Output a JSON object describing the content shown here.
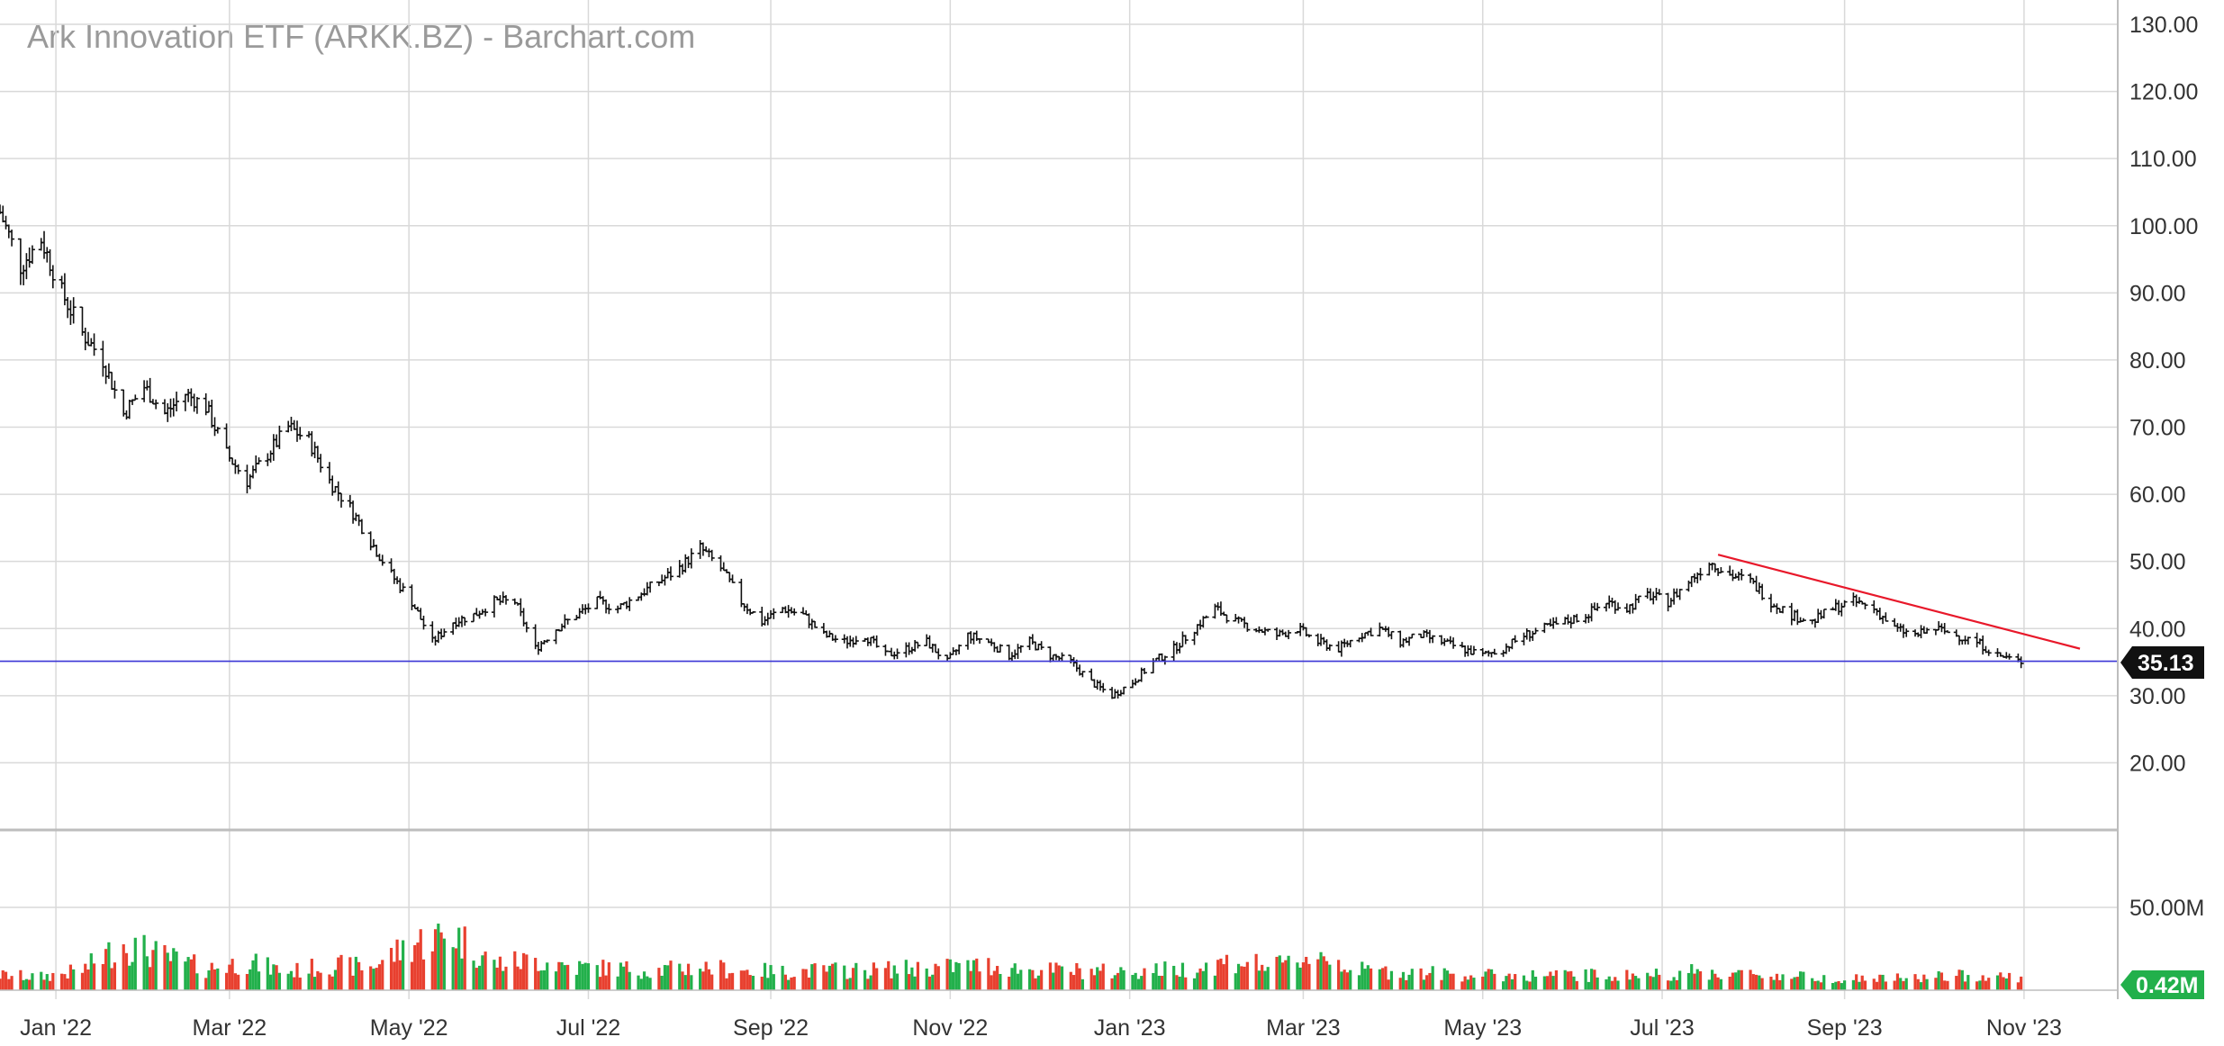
{
  "header": {
    "title": "Ark Innovation ETF (ARKK.BZ) - Barchart.com"
  },
  "colors": {
    "bars": "#111111",
    "up_volume": "#22b04b",
    "down_volume": "#e8402f",
    "neutral_volume": "#3b5bdb",
    "support_line": "#3a35d6",
    "trend_line": "#e8182a",
    "grid": "#d9d9d9",
    "price_badge": "#111111",
    "volume_badge": "#22b04b"
  },
  "chart_data": {
    "type": "ohlc_bar",
    "x_tick_labels": [
      "Jan '22",
      "Mar '22",
      "May '22",
      "Jul '22",
      "Sep '22",
      "Nov '22",
      "Jan '23",
      "Mar '23",
      "May '23",
      "Jul '23",
      "Sep '23",
      "Nov '23"
    ],
    "y_tick_labels": [
      "130.00",
      "120.00",
      "110.00",
      "100.00",
      "90.00",
      "80.00",
      "70.00",
      "60.00",
      "50.00",
      "40.00",
      "30.00",
      "20.00"
    ],
    "price_ylim": [
      10,
      130
    ],
    "price_ticks": [
      130,
      120,
      110,
      100,
      90,
      80,
      70,
      60,
      50,
      40,
      30,
      20
    ],
    "price_series_weekly": [
      [
        "2021-12-13",
        102
      ],
      [
        "2021-12-20",
        94
      ],
      [
        "2021-12-27",
        98
      ],
      [
        "2022-01-03",
        90
      ],
      [
        "2022-01-10",
        84
      ],
      [
        "2022-01-17",
        80
      ],
      [
        "2022-01-24",
        72
      ],
      [
        "2022-01-31",
        76
      ],
      [
        "2022-02-07",
        72
      ],
      [
        "2022-02-14",
        75
      ],
      [
        "2022-02-21",
        73
      ],
      [
        "2022-02-28",
        66
      ],
      [
        "2022-03-07",
        62
      ],
      [
        "2022-03-14",
        66
      ],
      [
        "2022-03-21",
        70
      ],
      [
        "2022-03-28",
        68
      ],
      [
        "2022-04-04",
        62
      ],
      [
        "2022-04-11",
        58
      ],
      [
        "2022-04-18",
        53
      ],
      [
        "2022-04-25",
        48
      ],
      [
        "2022-05-02",
        44
      ],
      [
        "2022-05-09",
        38
      ],
      [
        "2022-05-16",
        41
      ],
      [
        "2022-05-23",
        42
      ],
      [
        "2022-05-30",
        44
      ],
      [
        "2022-06-06",
        44
      ],
      [
        "2022-06-13",
        37
      ],
      [
        "2022-06-20",
        40
      ],
      [
        "2022-06-27",
        42
      ],
      [
        "2022-07-04",
        44
      ],
      [
        "2022-07-11",
        43
      ],
      [
        "2022-07-18",
        45
      ],
      [
        "2022-07-25",
        47
      ],
      [
        "2022-08-01",
        49
      ],
      [
        "2022-08-08",
        52
      ],
      [
        "2022-08-15",
        49
      ],
      [
        "2022-08-22",
        44
      ],
      [
        "2022-08-29",
        41
      ],
      [
        "2022-09-05",
        43
      ],
      [
        "2022-09-12",
        42
      ],
      [
        "2022-09-19",
        39
      ],
      [
        "2022-09-26",
        38
      ],
      [
        "2022-10-03",
        39
      ],
      [
        "2022-10-10",
        36
      ],
      [
        "2022-10-17",
        37
      ],
      [
        "2022-10-24",
        38
      ],
      [
        "2022-10-31",
        35
      ],
      [
        "2022-11-07",
        39
      ],
      [
        "2022-11-14",
        38
      ],
      [
        "2022-11-21",
        36
      ],
      [
        "2022-11-28",
        38
      ],
      [
        "2022-12-05",
        36
      ],
      [
        "2022-12-12",
        35
      ],
      [
        "2022-12-19",
        32
      ],
      [
        "2022-12-26",
        30
      ],
      [
        "2023-01-02",
        32
      ],
      [
        "2023-01-09",
        35
      ],
      [
        "2023-01-16",
        37
      ],
      [
        "2023-01-23",
        40
      ],
      [
        "2023-01-30",
        43
      ],
      [
        "2023-02-06",
        41
      ],
      [
        "2023-02-13",
        40
      ],
      [
        "2023-02-20",
        39
      ],
      [
        "2023-02-27",
        40
      ],
      [
        "2023-03-06",
        38
      ],
      [
        "2023-03-13",
        37
      ],
      [
        "2023-03-20",
        39
      ],
      [
        "2023-03-27",
        40
      ],
      [
        "2023-04-03",
        38
      ],
      [
        "2023-04-10",
        39
      ],
      [
        "2023-04-17",
        38
      ],
      [
        "2023-04-24",
        37
      ],
      [
        "2023-05-01",
        36
      ],
      [
        "2023-05-08",
        37
      ],
      [
        "2023-05-15",
        39
      ],
      [
        "2023-05-22",
        40
      ],
      [
        "2023-05-29",
        41
      ],
      [
        "2023-06-05",
        42
      ],
      [
        "2023-06-12",
        44
      ],
      [
        "2023-06-19",
        43
      ],
      [
        "2023-06-26",
        45
      ],
      [
        "2023-07-03",
        44
      ],
      [
        "2023-07-10",
        47
      ],
      [
        "2023-07-17",
        50
      ],
      [
        "2023-07-24",
        48
      ],
      [
        "2023-07-31",
        47
      ],
      [
        "2023-08-07",
        44
      ],
      [
        "2023-08-14",
        42
      ],
      [
        "2023-08-21",
        41
      ],
      [
        "2023-08-28",
        43
      ],
      [
        "2023-09-04",
        44
      ],
      [
        "2023-09-11",
        43
      ],
      [
        "2023-09-18",
        40
      ],
      [
        "2023-09-25",
        39
      ],
      [
        "2023-10-02",
        40
      ],
      [
        "2023-10-09",
        39
      ],
      [
        "2023-10-16",
        38
      ],
      [
        "2023-10-23",
        36
      ],
      [
        "2023-10-30",
        35.13
      ]
    ],
    "support_level": 35.13,
    "trend_line": {
      "start": [
        "2023-07-20",
        51
      ],
      "end": [
        "2023-11-20",
        37
      ]
    },
    "volume_ylim": [
      0,
      0.2
    ],
    "volume_ticks_labels": [
      "50.00M"
    ],
    "volume_weekly_millions": [
      [
        "2021-12-13",
        9
      ],
      [
        "2021-12-27",
        8
      ],
      [
        "2022-01-10",
        12
      ],
      [
        "2022-01-24",
        28
      ],
      [
        "2022-02-07",
        20
      ],
      [
        "2022-02-21",
        13
      ],
      [
        "2022-03-07",
        17
      ],
      [
        "2022-03-21",
        11
      ],
      [
        "2022-04-04",
        15
      ],
      [
        "2022-04-18",
        14
      ],
      [
        "2022-05-02",
        28
      ],
      [
        "2022-05-16",
        34
      ],
      [
        "2022-05-30",
        16
      ],
      [
        "2022-06-13",
        18
      ],
      [
        "2022-06-27",
        14
      ],
      [
        "2022-07-11",
        13
      ],
      [
        "2022-07-25",
        12
      ],
      [
        "2022-08-08",
        14
      ],
      [
        "2022-08-22",
        12
      ],
      [
        "2022-09-05",
        11
      ],
      [
        "2022-09-19",
        12
      ],
      [
        "2022-10-03",
        12
      ],
      [
        "2022-10-17",
        13
      ],
      [
        "2022-10-31",
        14
      ],
      [
        "2022-11-14",
        15
      ],
      [
        "2022-11-28",
        12
      ],
      [
        "2022-12-12",
        12
      ],
      [
        "2022-12-26",
        11
      ],
      [
        "2023-01-09",
        12
      ],
      [
        "2023-01-23",
        13
      ],
      [
        "2023-02-06",
        18
      ],
      [
        "2023-02-20",
        14
      ],
      [
        "2023-03-06",
        22
      ],
      [
        "2023-03-20",
        12
      ],
      [
        "2023-04-03",
        11
      ],
      [
        "2023-04-17",
        10
      ],
      [
        "2023-05-01",
        9
      ],
      [
        "2023-05-15",
        9
      ],
      [
        "2023-05-29",
        9
      ],
      [
        "2023-06-12",
        9
      ],
      [
        "2023-06-26",
        9
      ],
      [
        "2023-07-10",
        11
      ],
      [
        "2023-07-24",
        10
      ],
      [
        "2023-08-07",
        9
      ],
      [
        "2023-08-21",
        8
      ],
      [
        "2023-09-04",
        7
      ],
      [
        "2023-09-18",
        7
      ],
      [
        "2023-10-02",
        8
      ],
      [
        "2023-10-16",
        9
      ],
      [
        "2023-10-30",
        8
      ]
    ]
  },
  "price_badge": {
    "value": "35.13"
  },
  "volume_badge": {
    "value": "0.42M"
  }
}
